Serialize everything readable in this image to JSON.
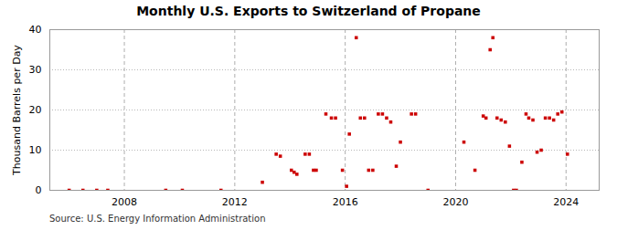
{
  "chart_data": {
    "type": "scatter",
    "title": "Monthly U.S. Exports to Switzerland of Propane",
    "ylabel": "Thousand Barrels per Day",
    "annotations": [
      "Source: U.S. Energy Information Administration"
    ],
    "color": "#cc0000",
    "marker": "square",
    "grid": "y",
    "xlim": [
      2005.3,
      2025.2
    ],
    "xticks": [
      2008,
      2012,
      2016,
      2020,
      2024
    ],
    "ylim": [
      0,
      40
    ],
    "yticks": [
      0,
      10,
      20,
      30,
      40
    ],
    "vlines": [
      2008,
      2012,
      2016,
      2020,
      2024
    ],
    "x": [
      2006.0,
      2006.5,
      2007.0,
      2007.4,
      2009.5,
      2010.1,
      2011.5,
      2013.0,
      2013.5,
      2013.65,
      2014.05,
      2014.15,
      2014.25,
      2014.55,
      2014.7,
      2014.85,
      2014.95,
      2015.3,
      2015.5,
      2015.65,
      2015.9,
      2016.05,
      2016.15,
      2016.4,
      2016.55,
      2016.7,
      2016.85,
      2017.0,
      2017.2,
      2017.35,
      2017.5,
      2017.65,
      2017.85,
      2018.0,
      2018.4,
      2018.55,
      2019.0,
      2020.3,
      2020.7,
      2021.0,
      2021.1,
      2021.25,
      2021.35,
      2021.5,
      2021.65,
      2021.8,
      2021.95,
      2022.1,
      2022.2,
      2022.4,
      2022.55,
      2022.65,
      2022.8,
      2022.95,
      2023.1,
      2023.25,
      2023.4,
      2023.55,
      2023.7,
      2023.85,
      2024.05
    ],
    "values": [
      0.0,
      0.0,
      0.0,
      0.0,
      0.0,
      0.0,
      0.0,
      2.0,
      9.0,
      8.5,
      5.0,
      4.5,
      4.0,
      9.0,
      9.0,
      5.0,
      5.0,
      19.0,
      18.0,
      18.0,
      5.0,
      1.0,
      14.0,
      38.0,
      18.0,
      18.0,
      5.0,
      5.0,
      19.0,
      19.0,
      18.0,
      17.0,
      6.0,
      12.0,
      19.0,
      19.0,
      0.0,
      12.0,
      5.0,
      18.5,
      18.0,
      35.0,
      38.0,
      18.0,
      17.5,
      17.0,
      11.0,
      0.0,
      0.0,
      7.0,
      19.0,
      18.0,
      17.5,
      9.5,
      10.0,
      18.0,
      18.0,
      17.5,
      19.0,
      19.5,
      9.0
    ]
  }
}
